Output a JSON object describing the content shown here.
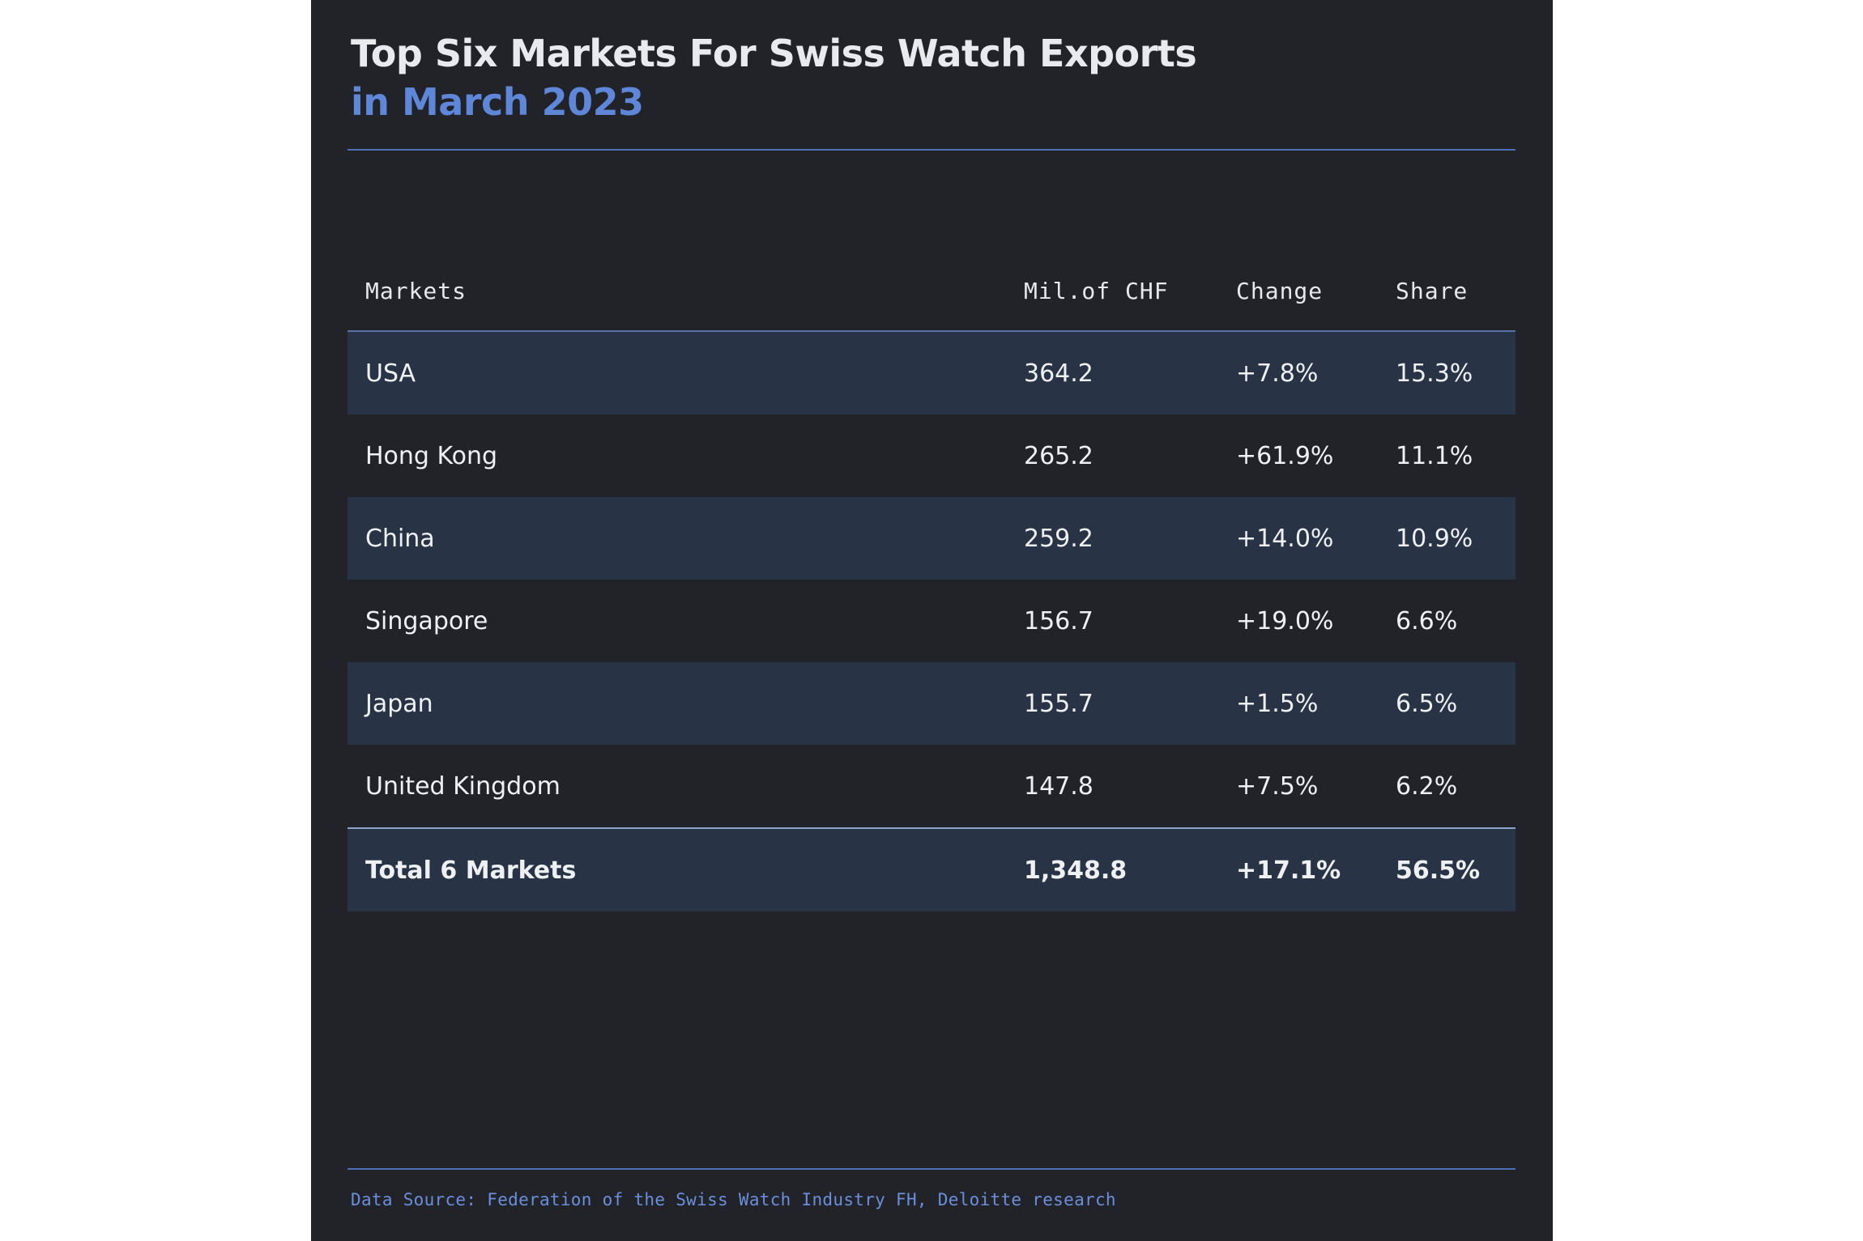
{
  "title": {
    "line1": "Top Six Markets For Swiss Watch Exports",
    "line2": "in March 2023"
  },
  "colors": {
    "panel_background": "#212328",
    "row_shaded": "#283346",
    "accent_blue": "#5f87d9",
    "rule": "#4f6fb4",
    "text": "#eef0f4"
  },
  "chart_data": {
    "type": "table",
    "columns": [
      "Markets",
      "Mil.of CHF",
      "Change",
      "Share"
    ],
    "rows": [
      [
        "USA",
        "364.2",
        "+7.8%",
        "15.3%"
      ],
      [
        "Hong Kong",
        "265.2",
        "+61.9%",
        "11.1%"
      ],
      [
        "China",
        "259.2",
        "+14.0%",
        "10.9%"
      ],
      [
        "Singapore",
        "156.7",
        "+19.0%",
        "6.6%"
      ],
      [
        "Japan",
        "155.7",
        "+1.5%",
        "6.5%"
      ],
      [
        "United Kingdom",
        "147.8",
        "+7.5%",
        "6.2%"
      ]
    ],
    "total": [
      "Total 6 Markets",
      "1,348.8",
      "+17.1%",
      "56.5%"
    ]
  },
  "source": "Data Source: Federation of the Swiss Watch Industry FH, Deloitte research"
}
